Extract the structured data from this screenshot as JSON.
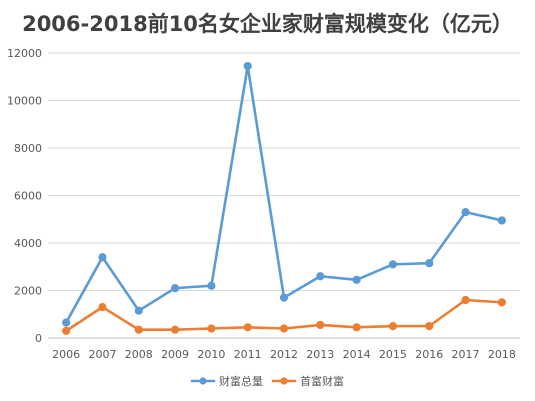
{
  "chart_data": {
    "type": "line",
    "title": "2006-2018前10名女企业家财富规模变化（亿元）",
    "xlabel": "",
    "ylabel": "",
    "categories": [
      "2006",
      "2007",
      "2008",
      "2009",
      "2010",
      "2011",
      "2012",
      "2013",
      "2014",
      "2015",
      "2016",
      "2017",
      "2018"
    ],
    "ylim": [
      0,
      12000
    ],
    "yticks": [
      0,
      2000,
      4000,
      6000,
      8000,
      10000,
      12000
    ],
    "grid": true,
    "legend_position": "bottom",
    "series": [
      {
        "name": "财富总量",
        "color": "#5B9BD5",
        "values": [
          650,
          3400,
          1150,
          2100,
          2200,
          11450,
          1700,
          2600,
          2450,
          3100,
          3150,
          5300,
          4950
        ]
      },
      {
        "name": "首富财富",
        "color": "#ED7D31",
        "values": [
          300,
          1300,
          350,
          350,
          400,
          450,
          400,
          550,
          450,
          500,
          500,
          1600,
          1500
        ]
      }
    ]
  }
}
